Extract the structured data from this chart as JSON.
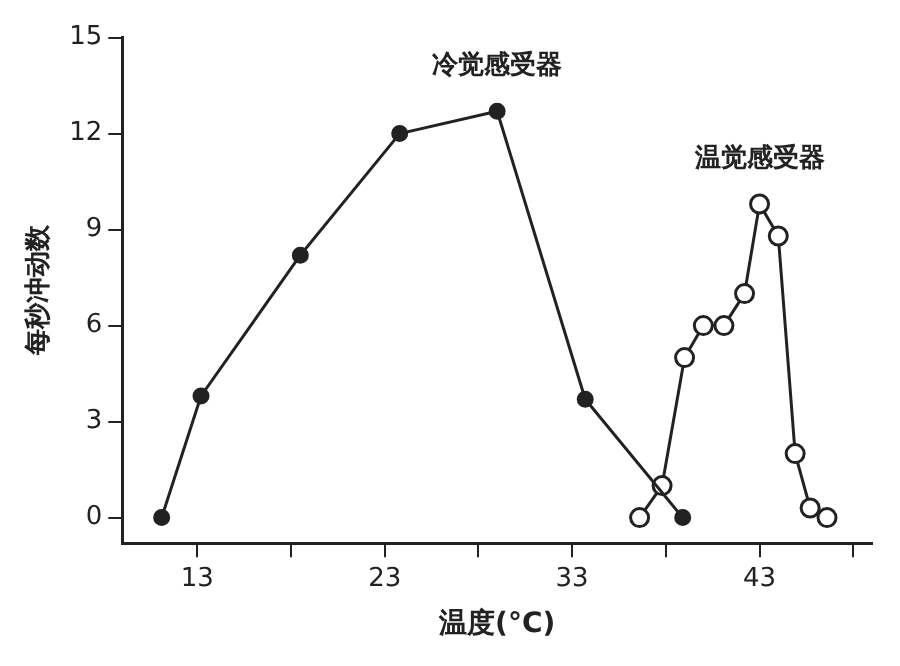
{
  "chart_data": {
    "type": "line",
    "xlabel": "温度(°C)",
    "ylabel": "每秒冲动数",
    "series": [
      {
        "name": "冷觉感受器",
        "color": "#222222",
        "x": [
          11.1,
          13.2,
          18.5,
          23.8,
          29.0,
          33.7,
          38.9
        ],
        "values": [
          0,
          3.8,
          8.2,
          12,
          12.7,
          3.7,
          0
        ]
      },
      {
        "name": "温觉感受器",
        "color": "#222222",
        "x": [
          36.6,
          37.8,
          39.0,
          40.0,
          41.1,
          42.2,
          43.0,
          44.0,
          44.9,
          45.7,
          46.6
        ],
        "values": [
          0,
          1,
          5,
          6,
          6,
          7,
          9.8,
          8.8,
          2,
          0.3,
          0
        ]
      }
    ],
    "xlim": [
      9,
      49
    ],
    "xticks": [
      13,
      {
        "value": 18,
        "label": null
      },
      23,
      {
        "value": 28,
        "label": null
      },
      33,
      {
        "value": 38,
        "label": null
      },
      43,
      {
        "value": 48,
        "label": null
      }
    ],
    "ylim": [
      -0.8,
      15
    ],
    "yticks": [
      0,
      3,
      6,
      9,
      12,
      15
    ],
    "grid": false,
    "legend": false,
    "marker": "circle",
    "line_style": "solid"
  }
}
